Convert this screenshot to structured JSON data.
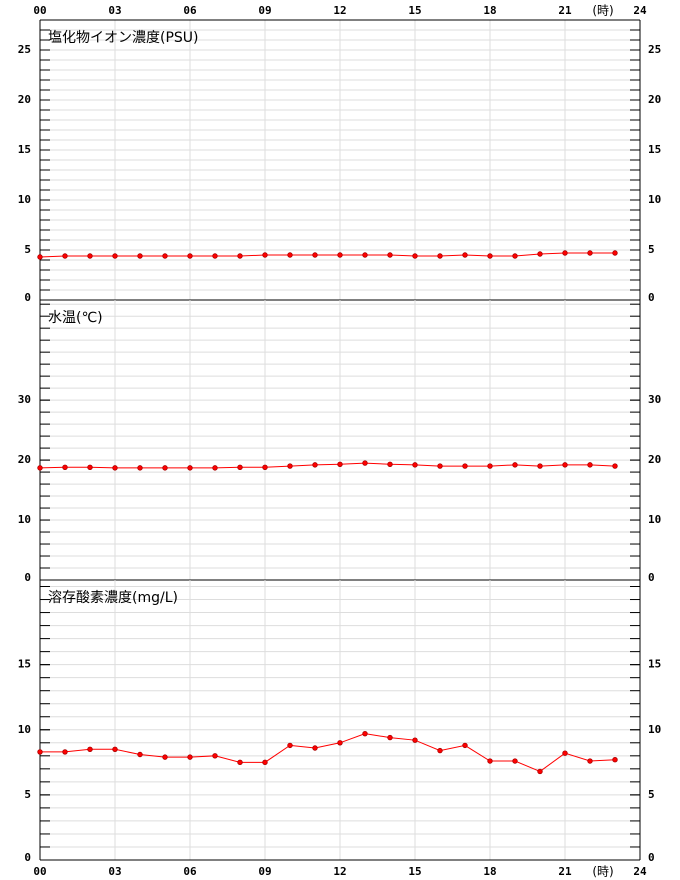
{
  "chart_data": [
    {
      "type": "line",
      "title": "塩化物イオン濃度(PSU)",
      "x_unit": "(時)",
      "x": [
        0,
        1,
        2,
        3,
        4,
        5,
        6,
        7,
        8,
        9,
        10,
        11,
        12,
        13,
        14,
        15,
        16,
        17,
        18,
        19,
        20,
        21,
        22,
        23
      ],
      "xlim": [
        0,
        24
      ],
      "xticks": [
        {
          "value": 0,
          "label": "00"
        },
        {
          "value": 3,
          "label": "03"
        },
        {
          "value": 6,
          "label": "06"
        },
        {
          "value": 9,
          "label": "09"
        },
        12,
        15,
        18,
        21,
        24
      ],
      "ylim": [
        0,
        28
      ],
      "yticks": [
        0,
        5,
        10,
        15,
        20,
        25
      ],
      "minor_step": 1,
      "grid": true,
      "series": [
        {
          "color": "#ff0000",
          "values": [
            4.3,
            4.4,
            4.4,
            4.4,
            4.4,
            4.4,
            4.4,
            4.4,
            4.4,
            4.5,
            4.5,
            4.5,
            4.5,
            4.5,
            4.5,
            4.4,
            4.4,
            4.5,
            4.4,
            4.4,
            4.6,
            4.7,
            4.7,
            4.7
          ]
        }
      ]
    },
    {
      "type": "line",
      "title": "水温(℃)",
      "x": [
        0,
        1,
        2,
        3,
        4,
        5,
        6,
        7,
        8,
        9,
        10,
        11,
        12,
        13,
        14,
        15,
        16,
        17,
        18,
        19,
        20,
        21,
        22,
        23
      ],
      "xlim": [
        0,
        24
      ],
      "xticks": [
        0,
        3,
        6,
        9,
        12,
        15,
        18,
        21,
        24
      ],
      "ylim": [
        0,
        46.7
      ],
      "yticks": [
        0,
        10,
        20,
        30
      ],
      "minor_step": 2,
      "grid": true,
      "series": [
        {
          "color": "#ff0000",
          "values": [
            18.7,
            18.8,
            18.8,
            18.7,
            18.7,
            18.7,
            18.7,
            18.7,
            18.8,
            18.8,
            19.0,
            19.2,
            19.3,
            19.5,
            19.3,
            19.2,
            19.0,
            19.0,
            19.0,
            19.2,
            19.0,
            19.2,
            19.2,
            19.0
          ]
        }
      ]
    },
    {
      "type": "line",
      "title": "溶存酸素濃度(mg/L)",
      "x_unit": "(時)",
      "x": [
        0,
        1,
        2,
        3,
        4,
        5,
        6,
        7,
        8,
        9,
        10,
        11,
        12,
        13,
        14,
        15,
        16,
        17,
        18,
        19,
        20,
        21,
        22,
        23
      ],
      "xlim": [
        0,
        24
      ],
      "xticks": [
        {
          "value": 0,
          "label": "00"
        },
        {
          "value": 3,
          "label": "03"
        },
        {
          "value": 6,
          "label": "06"
        },
        {
          "value": 9,
          "label": "09"
        },
        12,
        15,
        18,
        21,
        24
      ],
      "ylim": [
        0,
        21.5
      ],
      "yticks": [
        0,
        5,
        10,
        15
      ],
      "minor_step": 1,
      "grid": true,
      "series": [
        {
          "color": "#ff0000",
          "values": [
            8.3,
            8.3,
            8.5,
            8.5,
            8.1,
            7.9,
            7.9,
            8.0,
            7.5,
            7.5,
            8.8,
            8.6,
            9.0,
            9.7,
            9.4,
            9.2,
            8.4,
            8.8,
            7.6,
            7.6,
            6.8,
            8.2,
            7.6,
            7.7
          ]
        }
      ]
    }
  ]
}
